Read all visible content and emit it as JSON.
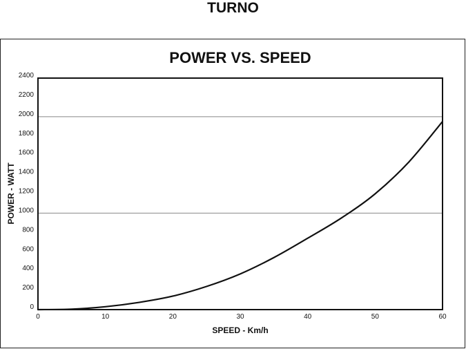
{
  "page": {
    "title": "TURNO"
  },
  "chart_data": {
    "type": "line",
    "title": "POWER VS. SPEED",
    "xlabel": "SPEED - Km/h",
    "ylabel": "POWER - WATT",
    "xlim": [
      0,
      60
    ],
    "ylim": [
      0,
      2400
    ],
    "xticks": [
      0,
      10,
      20,
      30,
      40,
      50,
      60
    ],
    "yticks": [
      0,
      200,
      400,
      600,
      800,
      1000,
      1200,
      1400,
      1600,
      1800,
      2000,
      2200,
      2400
    ],
    "gridlines_y": [
      1000,
      2000
    ],
    "grid": "horizontal at 1000 and 2000",
    "legend": "none",
    "series": [
      {
        "color": "#111111",
        "x": [
          0,
          5,
          10,
          15,
          20,
          25,
          30,
          35,
          40,
          45,
          50,
          55,
          60
        ],
        "y": [
          0,
          5,
          30,
          75,
          140,
          240,
          370,
          540,
          740,
          950,
          1200,
          1530,
          1950
        ]
      }
    ]
  }
}
